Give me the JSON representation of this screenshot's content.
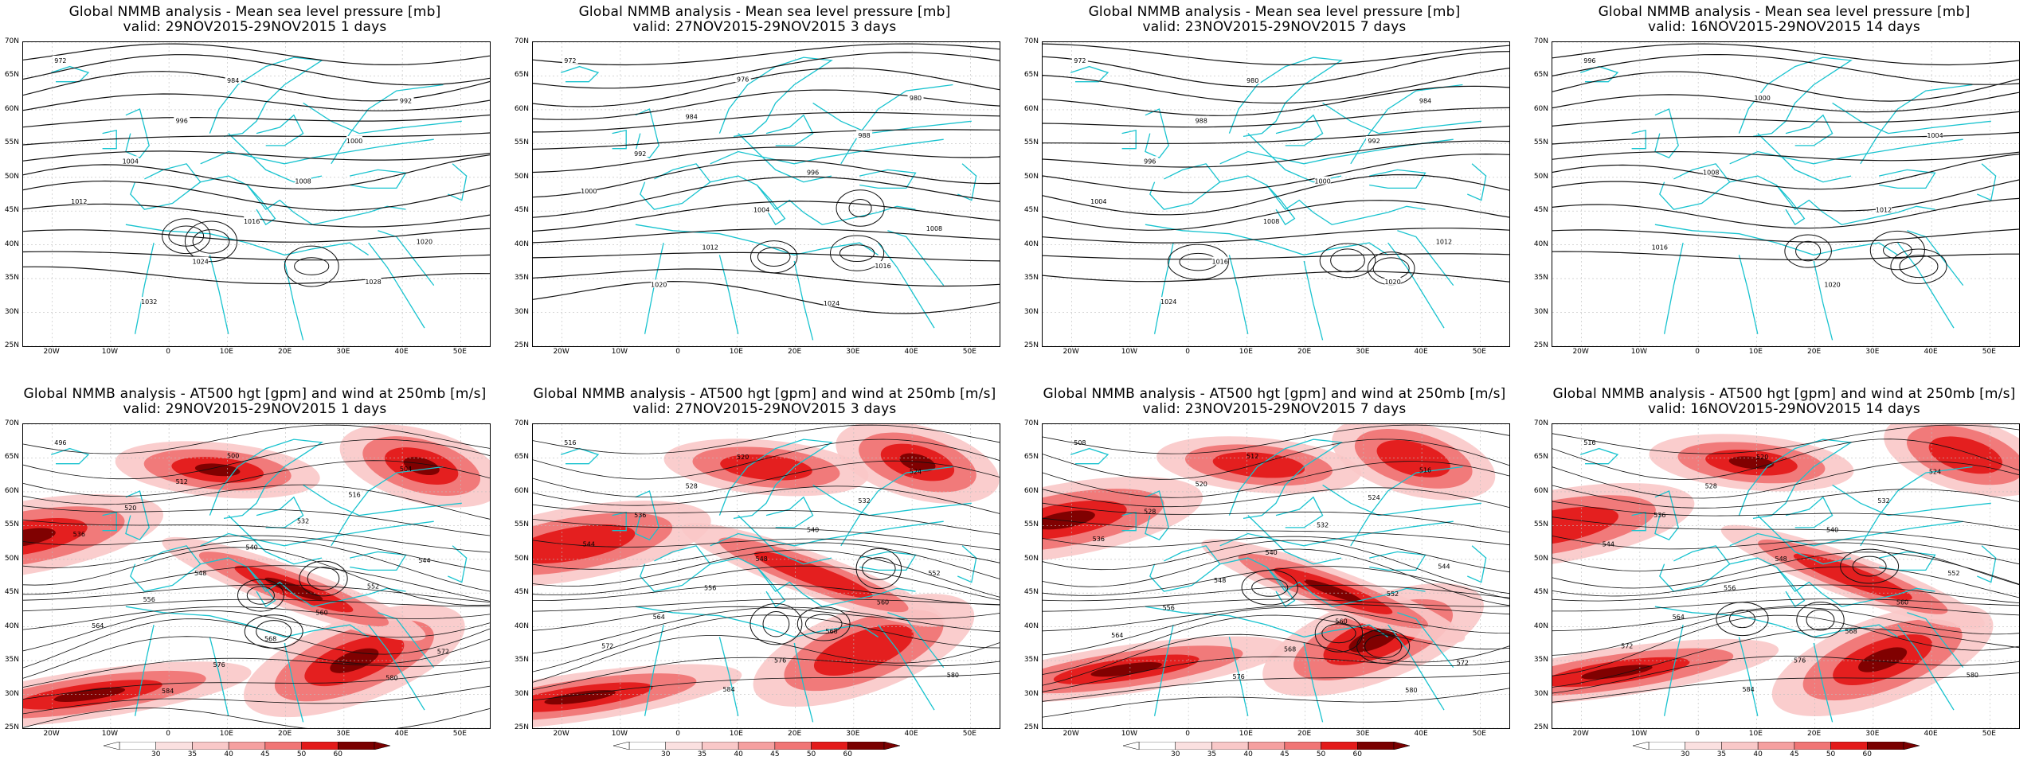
{
  "panels": [
    {
      "title_line1": "Global NMMB analysis - Mean sea level pressure [mb]",
      "title_line2": "valid: 29NOV2015-29NOV2015   1 days",
      "kind": "mslp",
      "contour_labels": [
        "972",
        "984",
        "992",
        "996",
        "1000",
        "1004",
        "1008",
        "1012",
        "1016",
        "1020",
        "1024",
        "1028",
        "1032"
      ]
    },
    {
      "title_line1": "Global NMMB analysis - Mean sea level pressure [mb]",
      "title_line2": "valid: 27NOV2015-29NOV2015   3 days",
      "kind": "mslp",
      "contour_labels": [
        "972",
        "976",
        "980",
        "984",
        "988",
        "992",
        "996",
        "1000",
        "1004",
        "1008",
        "1012",
        "1016",
        "1020",
        "1024"
      ]
    },
    {
      "title_line1": "Global NMMB analysis - Mean sea level pressure [mb]",
      "title_line2": "valid: 23NOV2015-29NOV2015   7 days",
      "kind": "mslp",
      "contour_labels": [
        "972",
        "980",
        "984",
        "988",
        "992",
        "996",
        "1000",
        "1004",
        "1008",
        "1012",
        "1016",
        "1020",
        "1024"
      ]
    },
    {
      "title_line1": "Global NMMB analysis - Mean sea level pressure [mb]",
      "title_line2": "valid: 16NOV2015-29NOV2015   14 days",
      "kind": "mslp",
      "contour_labels": [
        "996",
        "1000",
        "1004",
        "1008",
        "1012",
        "1016",
        "1020"
      ]
    },
    {
      "title_line1": "Global NMMB analysis - AT500 hgt [gpm] and wind at 250mb [m/s]",
      "title_line2": "valid: 29NOV2015-29NOV2015   1 days",
      "kind": "z500",
      "contour_labels": [
        "496",
        "500",
        "504",
        "512",
        "516",
        "520",
        "532",
        "536",
        "540",
        "544",
        "548",
        "552",
        "556",
        "560",
        "564",
        "568",
        "572",
        "576",
        "580",
        "584"
      ]
    },
    {
      "title_line1": "Global NMMB analysis - AT500 hgt [gpm] and wind at 250mb [m/s]",
      "title_line2": "valid: 27NOV2015-29NOV2015   3 days",
      "kind": "z500",
      "contour_labels": [
        "516",
        "520",
        "524",
        "528",
        "532",
        "536",
        "540",
        "544",
        "548",
        "552",
        "556",
        "560",
        "564",
        "568",
        "572",
        "576",
        "580",
        "584"
      ]
    },
    {
      "title_line1": "Global NMMB analysis - AT500 hgt [gpm] and wind at 250mb [m/s]",
      "title_line2": "valid: 23NOV2015-29NOV2015   7 days",
      "kind": "z500",
      "contour_labels": [
        "508",
        "512",
        "516",
        "520",
        "524",
        "528",
        "532",
        "536",
        "540",
        "544",
        "548",
        "552",
        "556",
        "560",
        "564",
        "568",
        "572",
        "576",
        "580"
      ]
    },
    {
      "title_line1": "Global NMMB analysis - AT500 hgt [gpm] and wind at 250mb [m/s]",
      "title_line2": "valid: 16NOV2015-29NOV2015   14 days",
      "kind": "z500",
      "contour_labels": [
        "516",
        "520",
        "524",
        "528",
        "532",
        "536",
        "540",
        "544",
        "548",
        "552",
        "556",
        "560",
        "564",
        "568",
        "572",
        "576",
        "580",
        "584"
      ]
    }
  ],
  "lat_labels": [
    "70N",
    "65N",
    "60N",
    "55N",
    "50N",
    "45N",
    "40N",
    "35N",
    "30N",
    "25N"
  ],
  "lon_labels": [
    "20W",
    "10W",
    "0",
    "10E",
    "20E",
    "30E",
    "40E",
    "50E"
  ],
  "colorbar_ticks": [
    "30",
    "35",
    "40",
    "45",
    "50",
    "60"
  ],
  "colors": {
    "contour": "#111111",
    "coastline": "#19c3cf",
    "grid": "#bdbdbd",
    "wind_light": "#f9c8c8",
    "wind_mid": "#f07575",
    "wind_strong": "#e31a1a",
    "wind_max": "#7a0000"
  }
}
